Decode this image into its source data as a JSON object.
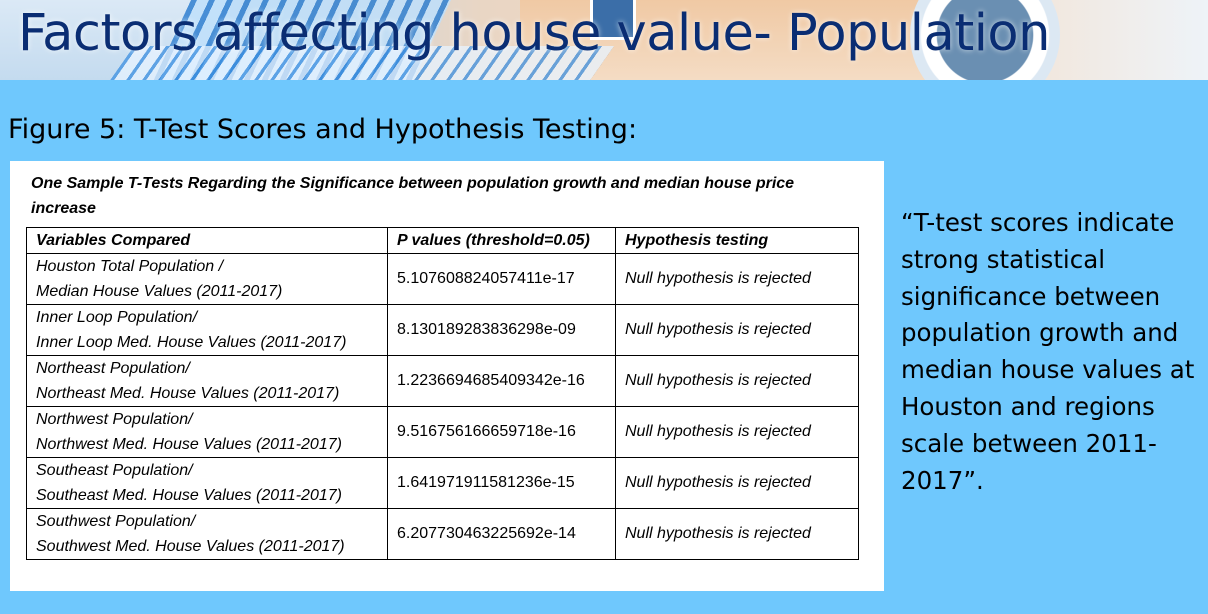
{
  "slide": {
    "title": "Factors affecting house value- Population",
    "figure_caption": "Figure 5: T-Test Scores and Hypothesis Testing:",
    "quote": "“T-test scores indicate strong statistical significance between population growth and median house values at Houston and regions scale between 2011-2017”."
  },
  "table": {
    "title": "One Sample T-Tests Regarding the Significance between population growth and median house price increase",
    "headers": [
      "Variables Compared",
      "P values (threshold=0.05)",
      "Hypothesis testing"
    ],
    "rows": [
      {
        "var_line1": "Houston Total Population /",
        "var_line2": "Median House Values (2011-2017)",
        "p_value": "5.107608824057411e-17",
        "hypothesis": "Null hypothesis is rejected"
      },
      {
        "var_line1": "Inner Loop Population/",
        "var_line2": "Inner Loop Med. House Values (2011-2017)",
        "p_value": "8.130189283836298e-09",
        "hypothesis": "Null hypothesis is rejected"
      },
      {
        "var_line1": "Northeast Population/",
        "var_line2": "Northeast Med. House Values (2011-2017)",
        "p_value": "1.2236694685409342e-16",
        "hypothesis": "Null hypothesis is rejected"
      },
      {
        "var_line1": "Northwest Population/",
        "var_line2": "Northwest Med. House Values (2011-2017)",
        "p_value": "9.516756166659718e-16",
        "hypothesis": "Null hypothesis is rejected"
      },
      {
        "var_line1": "Southeast Population/",
        "var_line2": "Southeast Med. House Values (2011-2017)",
        "p_value": "1.641971911581236e-15",
        "hypothesis": "Null hypothesis is rejected"
      },
      {
        "var_line1": "Southwest Population/",
        "var_line2": "Southwest Med. House Values (2011-2017)",
        "p_value": "6.207730463225692e-14",
        "hypothesis": "Null hypothesis is rejected"
      }
    ]
  },
  "colors": {
    "background": "#6fc8fd",
    "title_text": "#0a2d73",
    "panel": "#ffffff"
  }
}
